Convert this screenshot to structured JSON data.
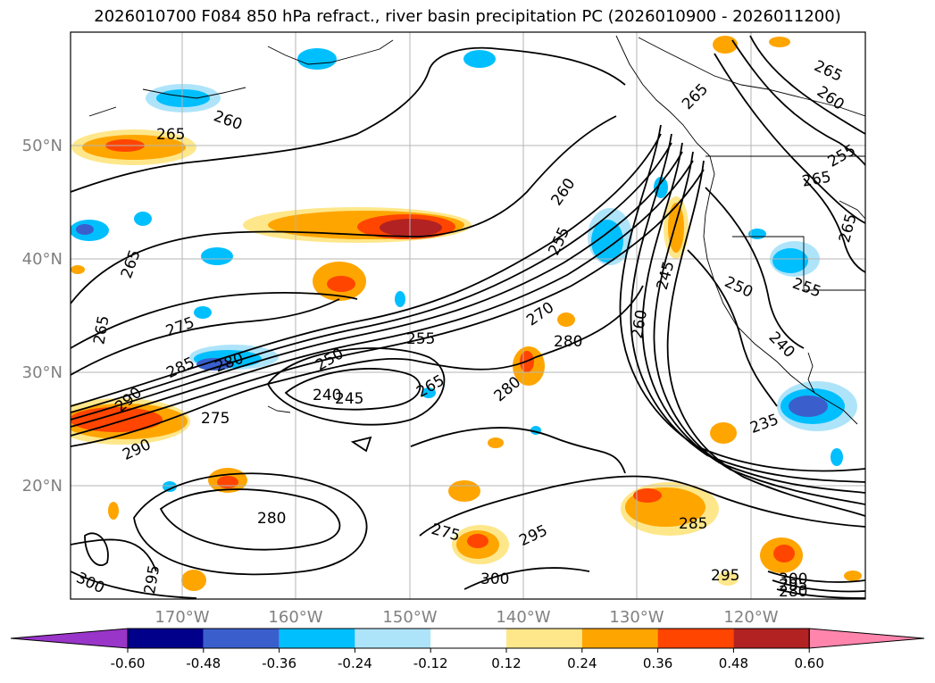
{
  "title": "2026010700 F084 850 hPa refract., river basin precipitation PC (2026010900 - 2026011200)",
  "map": {
    "lon_ticks": [
      "170°W",
      "160°W",
      "150°W",
      "140°W",
      "130°W",
      "120°W"
    ],
    "lat_ticks": [
      "50°N",
      "40°N",
      "30°N",
      "20°N"
    ],
    "contour_labels": [
      "265",
      "260",
      "265",
      "265",
      "275",
      "285",
      "280",
      "290",
      "290",
      "275",
      "250",
      "255",
      "240",
      "245",
      "265",
      "270",
      "260",
      "255",
      "265",
      "245",
      "260",
      "280",
      "275",
      "295",
      "300",
      "280",
      "295",
      "300",
      "285",
      "295",
      "280",
      "235",
      "240",
      "250",
      "255",
      "265",
      "265",
      "255",
      "260",
      "265",
      "300",
      "295",
      "280"
    ]
  },
  "colorbar": {
    "tick_labels": [
      "-0.60",
      "-0.48",
      "-0.36",
      "-0.24",
      "-0.12",
      "0.12",
      "0.24",
      "0.36",
      "0.48",
      "0.60"
    ],
    "colors": [
      "#9a35c9",
      "#00008b",
      "#3a5fcd",
      "#00bfff",
      "#aee4fa",
      "#ffffff",
      "#fee78a",
      "#ffa500",
      "#ff4500",
      "#b22222",
      "#ff85ad"
    ]
  }
}
